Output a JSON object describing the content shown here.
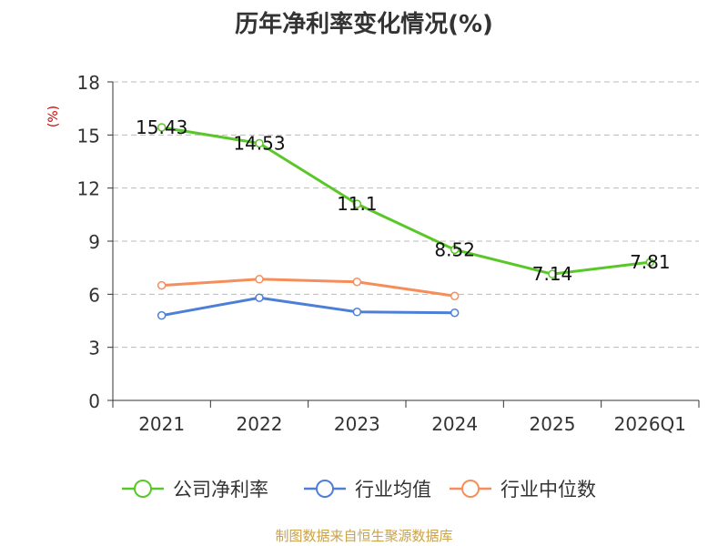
{
  "chart_data": {
    "type": "line",
    "title": "历年净利率变化情况(%)",
    "ylabel": "(%)",
    "xlabel": "",
    "categories": [
      "2021",
      "2022",
      "2023",
      "2024",
      "2025",
      "2026Q1"
    ],
    "ylim": [
      0,
      18
    ],
    "yticks": [
      0,
      3,
      6,
      9,
      12,
      15,
      18
    ],
    "grid": true,
    "legend_position": "bottom",
    "series": [
      {
        "name": "公司净利率",
        "color": "#5ac729",
        "values": [
          15.43,
          14.53,
          11.1,
          8.52,
          7.14,
          7.81
        ],
        "labels": [
          "15.43",
          "14.53",
          "11.1",
          "8.52",
          "7.14",
          "7.81"
        ]
      },
      {
        "name": "行业均值",
        "color": "#4e7fd6",
        "values": [
          4.8,
          5.8,
          5.0,
          4.95,
          null,
          null
        ]
      },
      {
        "name": "行业中位数",
        "color": "#f58e5a",
        "values": [
          6.5,
          6.85,
          6.7,
          5.9,
          null,
          null
        ]
      }
    ]
  },
  "source_text": "制图数据来自恒生聚源数据库"
}
